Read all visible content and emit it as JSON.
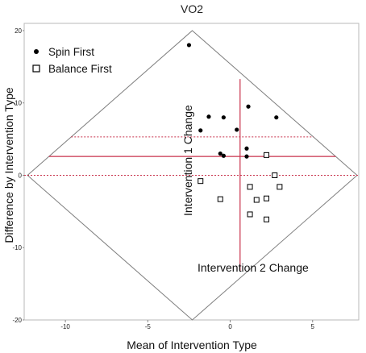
{
  "chart_data": {
    "type": "scatter",
    "title": "VO2",
    "xlabel": "Mean of Intervention Type",
    "ylabel": "Difference by Intervention Type",
    "xlim": [
      -12.5,
      7.8
    ],
    "ylim": [
      -20,
      21
    ],
    "x_ticks": [
      -10,
      -5,
      0,
      5
    ],
    "y_ticks": [
      20,
      10,
      0,
      -10,
      -20
    ],
    "x_tick_labels": [
      "-10",
      "-5",
      "0",
      "5"
    ],
    "y_tick_labels": [
      "20",
      "10",
      "0",
      "-10",
      "-20"
    ],
    "grid": false,
    "legend_position": "top-left",
    "series": [
      {
        "name": "Spin First",
        "marker": "filled-circle",
        "color": "#000000",
        "points": [
          [
            -2.5,
            18.0
          ],
          [
            -1.8,
            6.2
          ],
          [
            -1.3,
            8.1
          ],
          [
            -0.4,
            8.0
          ],
          [
            0.4,
            6.3
          ],
          [
            -0.6,
            3.0
          ],
          [
            -0.4,
            2.7
          ],
          [
            1.1,
            9.5
          ],
          [
            2.8,
            8.0
          ],
          [
            1.0,
            3.7
          ],
          [
            1.0,
            2.6
          ]
        ]
      },
      {
        "name": "Balance First",
        "marker": "open-square",
        "color": "#000000",
        "points": [
          [
            -1.8,
            -0.8
          ],
          [
            -0.6,
            -3.3
          ],
          [
            2.2,
            2.8
          ],
          [
            2.7,
            0.0
          ],
          [
            3.0,
            -1.6
          ],
          [
            1.2,
            -1.6
          ],
          [
            1.6,
            -3.4
          ],
          [
            2.2,
            -3.2
          ],
          [
            1.2,
            -5.4
          ],
          [
            2.2,
            -6.1
          ]
        ]
      }
    ],
    "reference_lines": {
      "mean_difference": 2.6,
      "upper_band": 5.3,
      "lower_band": 0.0,
      "vertical_mean": 0.6,
      "vertical_range": [
        -13.2,
        13.3
      ],
      "color": "#c8324c"
    },
    "region_diamond": {
      "center": [
        -2.3,
        0.0
      ],
      "half_width": 10.0,
      "half_height": 20.0
    },
    "annotations": [
      {
        "text": "Intervention 1 Change",
        "orientation": "vertical"
      },
      {
        "text": "Intervention 2 Change",
        "orientation": "horizontal"
      }
    ]
  }
}
